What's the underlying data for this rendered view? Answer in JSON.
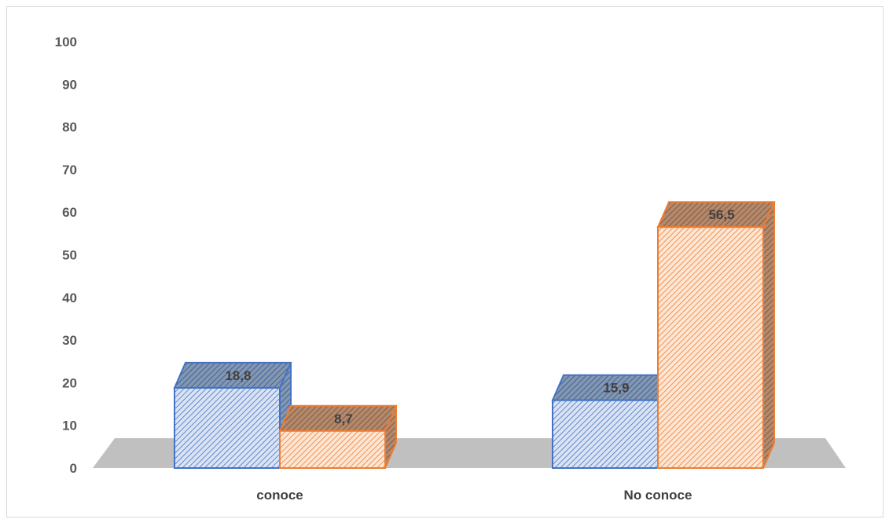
{
  "chart_data": {
    "type": "bar",
    "categories": [
      "conoce",
      "No conoce"
    ],
    "series": [
      {
        "values": [
          18.8,
          15.9
        ],
        "color": "#4472c4"
      },
      {
        "values": [
          8.7,
          56.5
        ],
        "color": "#ed7d31"
      }
    ],
    "ylim": [
      0,
      100
    ],
    "yticks": [
      "0",
      "10",
      "20",
      "30",
      "40",
      "50",
      "60",
      "70",
      "80",
      "90",
      "100"
    ],
    "data_labels": [
      [
        "18,8",
        "15,9"
      ],
      [
        "8,7",
        "56,5"
      ]
    ],
    "style": "3d-column",
    "grid": false,
    "legend": "none"
  }
}
